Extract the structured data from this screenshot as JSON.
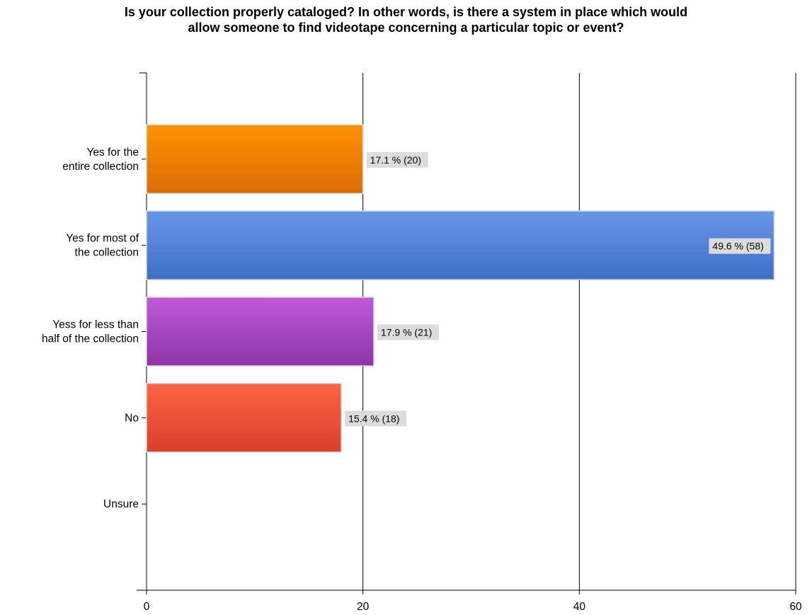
{
  "title_lines": [
    "Is your collection properly cataloged? In other words, is there a system in place which would",
    "allow someone to find videotape concerning a particular topic or event?"
  ],
  "chart_data": {
    "type": "bar",
    "orientation": "horizontal",
    "title": "Is your collection properly cataloged? In other words, is there a system in place which would allow someone to find videotape concerning a particular topic or event?",
    "categories": [
      [
        "Yes for the",
        "entire collection"
      ],
      [
        "Yes for most of",
        "the collection"
      ],
      [
        "Yess for less than",
        "half of the collection"
      ],
      [
        "No"
      ],
      [
        "Unsure"
      ]
    ],
    "values": [
      20,
      58,
      21,
      18,
      0
    ],
    "data_labels": [
      "17.1 % (20)",
      "49.6 % (58)",
      "17.9 % (21)",
      "15.4 % (18)",
      ""
    ],
    "colors": [
      [
        "#ff9200",
        "#db6c06"
      ],
      [
        "#6896e8",
        "#3f6fc6"
      ],
      [
        "#c05ad8",
        "#8e34a8"
      ],
      [
        "#fc6446",
        "#d8402a"
      ],
      [
        "#cccccc",
        "#aaaaaa"
      ]
    ],
    "xlim": [
      0,
      60
    ],
    "xticks": [
      "0",
      "20",
      "40",
      "60"
    ],
    "grid": true,
    "xlabel": "",
    "ylabel": ""
  }
}
